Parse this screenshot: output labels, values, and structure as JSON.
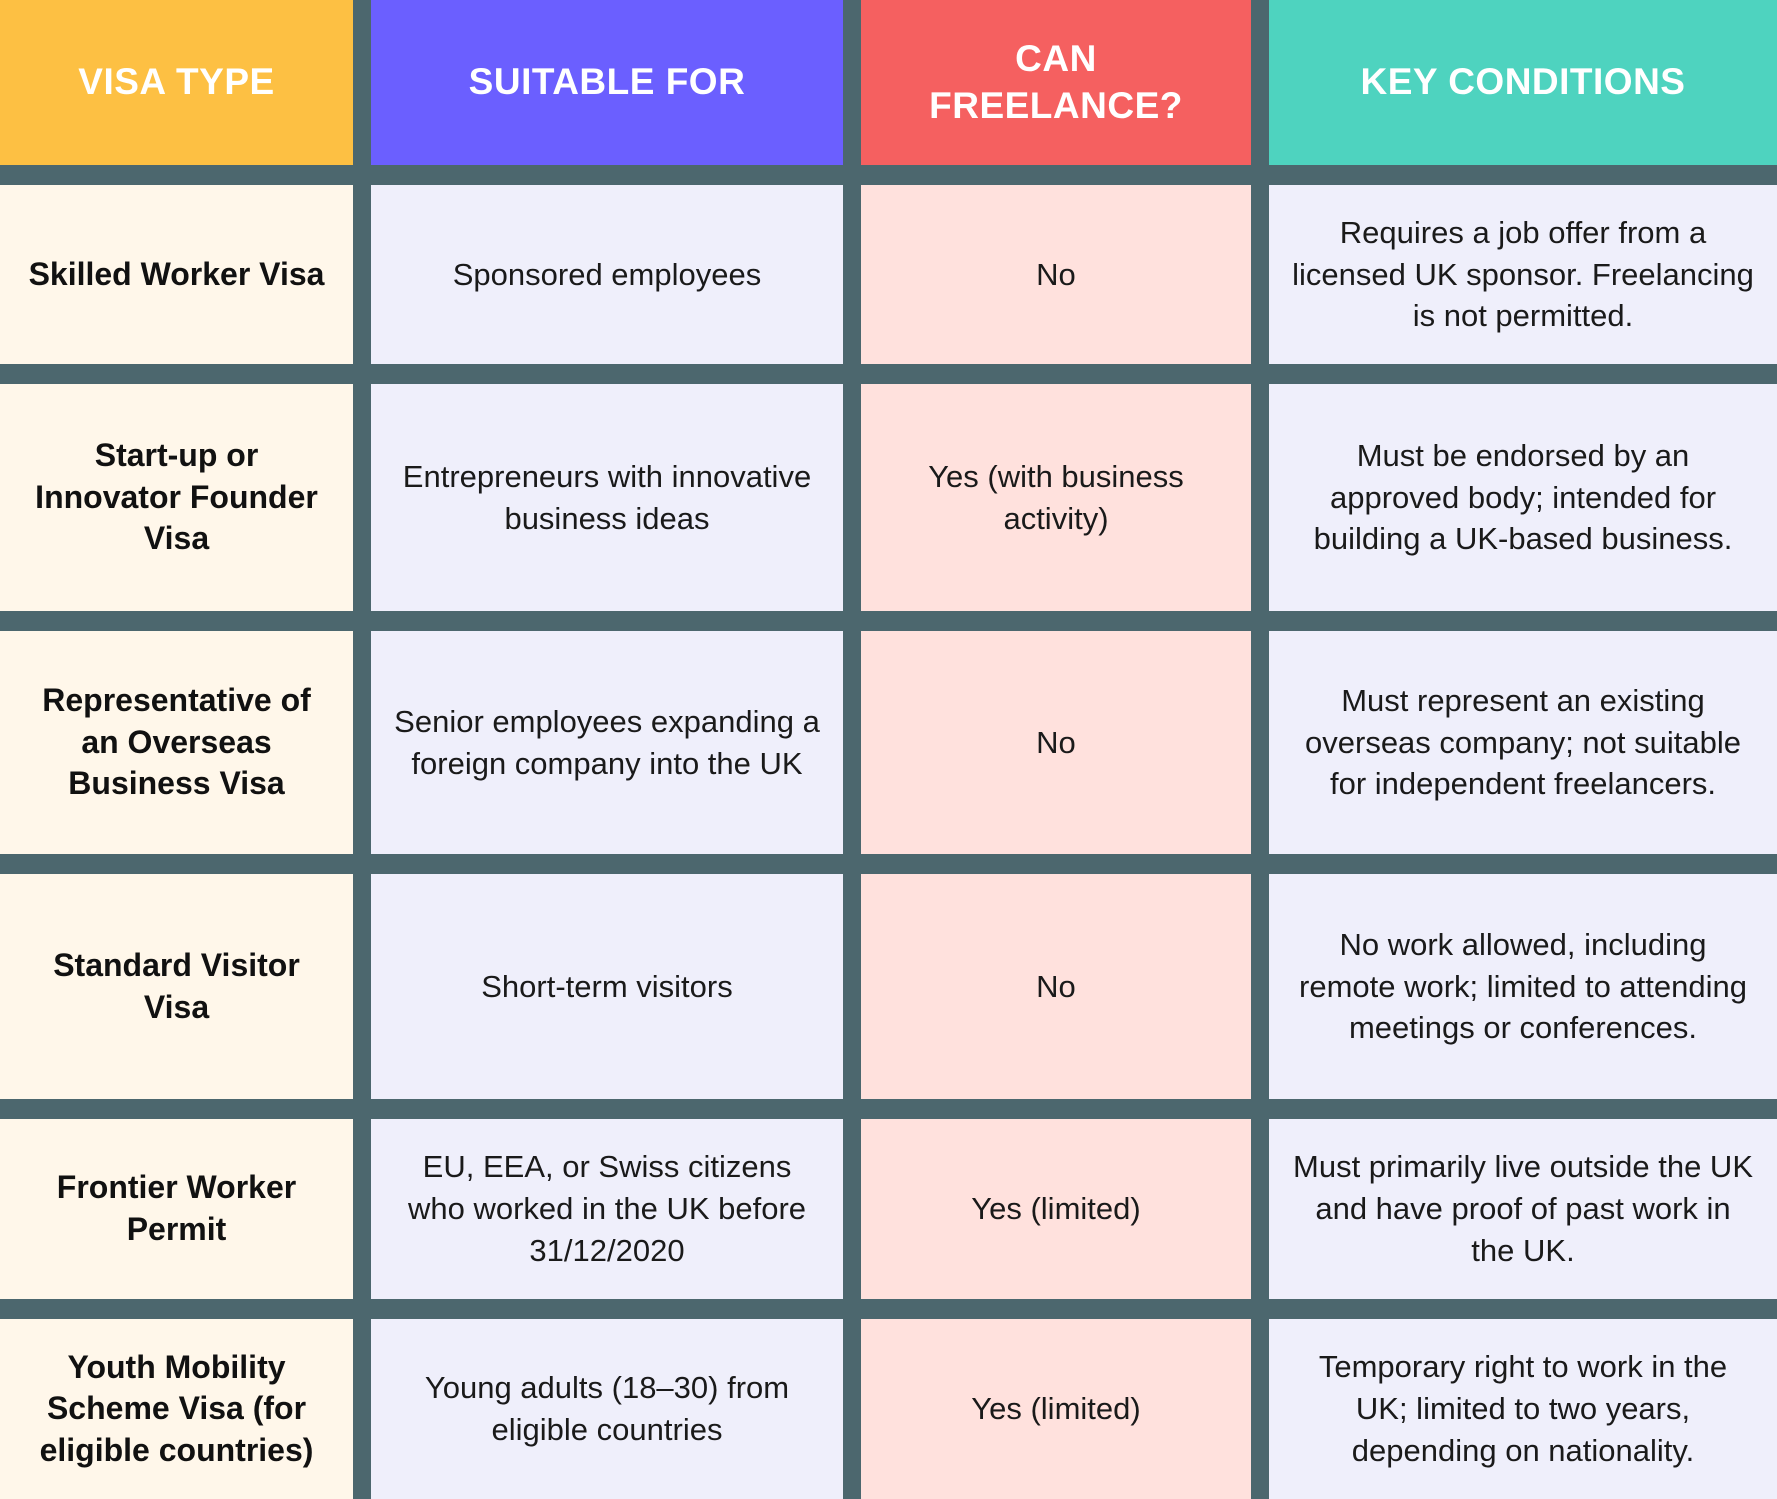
{
  "title": "UK visa types freelancing comparison table",
  "colors": {
    "header_visa_type": "#FDC043",
    "header_suitable_for": "#6B5FFF",
    "header_can_freelance": "#F56060",
    "header_key_conditions": "#4ED3BF",
    "cell_visa_type": "#FFF7EA",
    "cell_suitable_for": "#EFEFFB",
    "cell_can_freelance": "#FFE1DD",
    "cell_key_conditions": "#EFEFFB",
    "grid_background": "#4C676E",
    "header_text": "#FFFFFF",
    "body_text": "#1a1a1a"
  },
  "chart_data": {
    "type": "table",
    "title": "",
    "columns": [
      "VISA TYPE",
      "SUITABLE FOR",
      "CAN FREELANCE?",
      "KEY CONDITIONS"
    ],
    "rows": [
      [
        "Skilled Worker Visa",
        "Sponsored employees",
        "No",
        "Requires a job offer from a licensed UK sponsor. Freelancing is not permitted."
      ],
      [
        "Start-up or Innovator Founder Visa",
        "Entrepreneurs with innovative business ideas",
        "Yes (with business activity)",
        "Must be endorsed by an approved body; intended for building a UK-based business."
      ],
      [
        "Representative of an Overseas Business Visa",
        "Senior employees expanding a foreign company into the UK",
        "No",
        "Must represent an existing overseas company; not suitable for independent freelancers."
      ],
      [
        "Standard Visitor Visa",
        "Short-term visitors",
        "No",
        "No work allowed, including remote work; limited to attending meetings or conferences."
      ],
      [
        "Frontier Worker Permit",
        "EU, EEA, or Swiss citizens who worked in the UK before 31/12/2020",
        "Yes (limited)",
        "Must primarily live outside the UK and have proof of past work in the UK."
      ],
      [
        "Youth Mobility Scheme Visa (for eligible countries)",
        "Young adults (18–30) from eligible countries",
        "Yes (limited)",
        "Temporary right to work in the UK; limited to two years, depending on nationality."
      ]
    ]
  },
  "table": {
    "headers": {
      "visa_type": "VISA TYPE",
      "suitable_for": "SUITABLE FOR",
      "can_freelance": "CAN FREELANCE?",
      "key_conditions": "KEY CONDITIONS"
    },
    "rows": [
      {
        "visa_type": "Skilled Worker Visa",
        "suitable_for": "Sponsored employees",
        "can_freelance": "No",
        "key_conditions": "Requires a job offer from a licensed UK sponsor. Freelancing is not permitted."
      },
      {
        "visa_type": "Start-up or Innovator Founder Visa",
        "suitable_for": "Entrepreneurs with innovative business ideas",
        "can_freelance": "Yes (with business activity)",
        "key_conditions": "Must be endorsed by an approved body; intended for building a UK-based business."
      },
      {
        "visa_type": "Representative of an Overseas Business Visa",
        "suitable_for": "Senior employees expanding a foreign company into the UK",
        "can_freelance": "No",
        "key_conditions": "Must represent an existing overseas company; not suitable for independent freelancers."
      },
      {
        "visa_type": "Standard Visitor Visa",
        "suitable_for": "Short-term visitors",
        "can_freelance": "No",
        "key_conditions": "No work allowed, including remote work; limited to attending meetings or conferences."
      },
      {
        "visa_type": "Frontier Worker Permit",
        "suitable_for": "EU, EEA, or Swiss citizens who worked in the UK before 31/12/2020",
        "can_freelance": "Yes (limited)",
        "key_conditions": "Must primarily live outside the UK and have proof of past work in the UK."
      },
      {
        "visa_type": "Youth Mobility Scheme Visa (for eligible countries)",
        "suitable_for": "Young adults (18–30) from eligible countries",
        "can_freelance": "Yes (limited)",
        "key_conditions": "Temporary right to work in the UK; limited to two years, depending on nationality."
      }
    ]
  }
}
